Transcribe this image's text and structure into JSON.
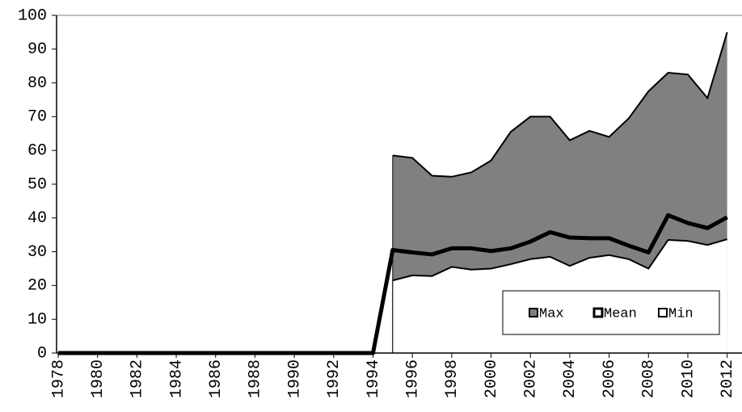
{
  "chart_data": {
    "type": "area",
    "x": [
      1978,
      1979,
      1980,
      1981,
      1982,
      1983,
      1984,
      1985,
      1986,
      1987,
      1988,
      1989,
      1990,
      1991,
      1992,
      1993,
      1994,
      1995,
      1996,
      1997,
      1998,
      1999,
      2000,
      2001,
      2002,
      2003,
      2004,
      2005,
      2006,
      2007,
      2008,
      2009,
      2010,
      2011,
      2012
    ],
    "series": [
      {
        "name": "Max",
        "color": "#808080",
        "style": "area",
        "values": [
          null,
          null,
          null,
          null,
          null,
          null,
          null,
          null,
          null,
          null,
          null,
          null,
          null,
          null,
          null,
          null,
          null,
          58.5,
          57.8,
          52.5,
          52.2,
          53.5,
          57,
          65.5,
          70,
          70,
          63,
          65.8,
          64,
          69.5,
          77.5,
          83,
          82.5,
          75.5,
          95
        ]
      },
      {
        "name": "Mean",
        "color": "#000000",
        "style": "line",
        "values": [
          0,
          0,
          0,
          0,
          0,
          0,
          0,
          0,
          0,
          0,
          0,
          0,
          0,
          0,
          0,
          0,
          0,
          30.5,
          29.8,
          29.2,
          31,
          31,
          30.2,
          31,
          33,
          35.8,
          34.2,
          34,
          34,
          31.8,
          29.8,
          40.8,
          38.5,
          37,
          40.2
        ]
      },
      {
        "name": "Min",
        "color": "#ffffff",
        "style": "area",
        "values": [
          null,
          null,
          null,
          null,
          null,
          null,
          null,
          null,
          null,
          null,
          null,
          null,
          null,
          null,
          null,
          null,
          null,
          21.5,
          23,
          22.8,
          25.5,
          24.7,
          25,
          26.3,
          27.8,
          28.5,
          25.8,
          28.2,
          29,
          27.8,
          25,
          33.5,
          33.2,
          32,
          33.7
        ]
      }
    ],
    "xlim": [
      1978,
      2013
    ],
    "xticks": [
      1978,
      1980,
      1982,
      1984,
      1986,
      1988,
      1990,
      1992,
      1994,
      1996,
      1998,
      2000,
      2002,
      2004,
      2006,
      2008,
      2010,
      2012
    ],
    "ylim": [
      0,
      100
    ],
    "yticks": [
      0,
      10,
      20,
      30,
      40,
      50,
      60,
      70,
      80,
      90,
      100
    ],
    "legend": "lower right"
  }
}
